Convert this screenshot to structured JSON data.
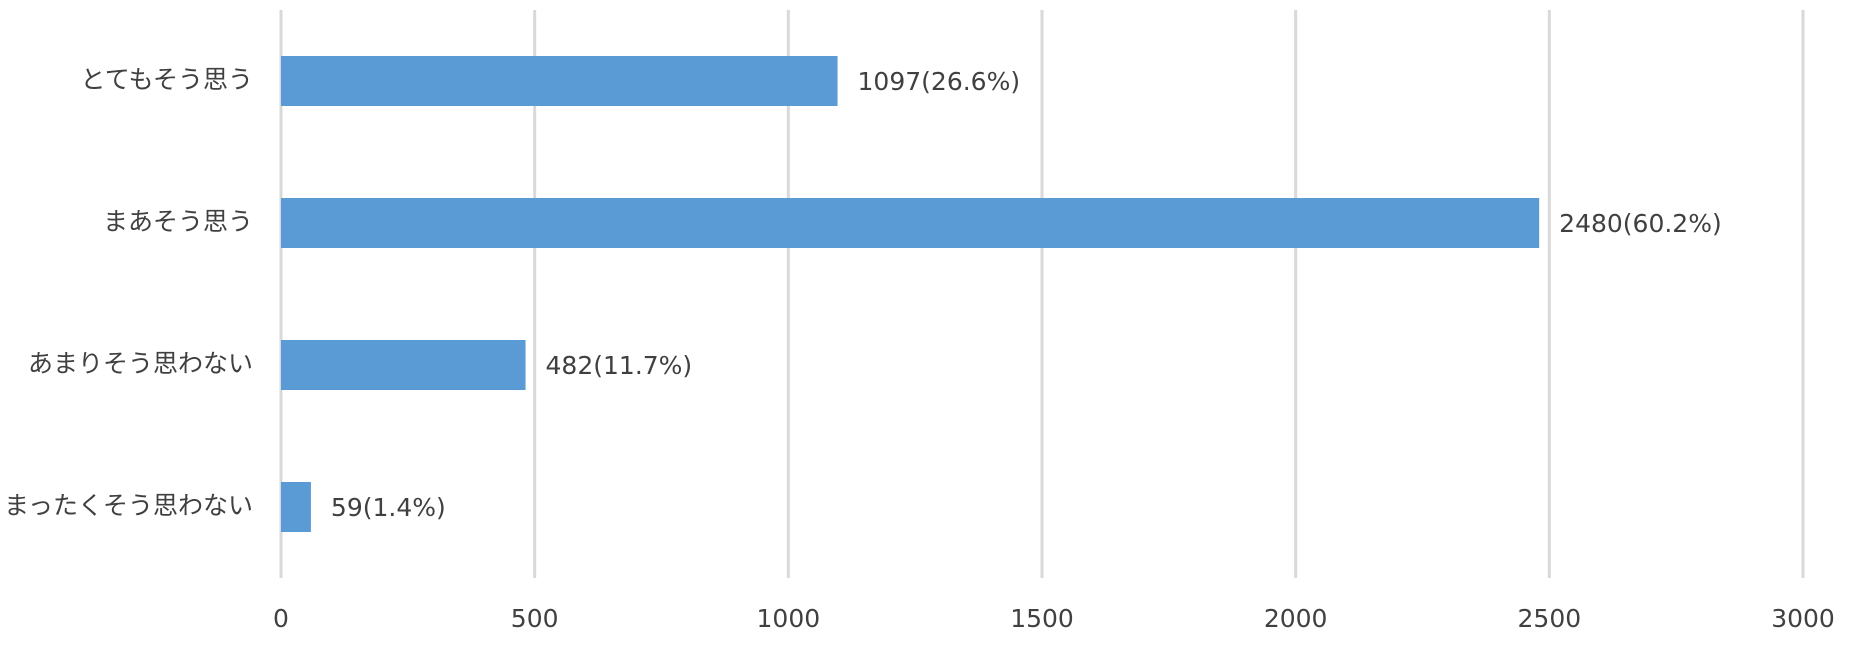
{
  "chart_data": {
    "type": "hbar",
    "categories": [
      "とてもそう思う",
      "まあそう思う",
      "あまりそう思わない",
      "まったくそう思わない"
    ],
    "values": [
      1097,
      2480,
      482,
      59
    ],
    "value_labels": [
      "1097(26.6%)",
      "2480(60.2%)",
      "482(11.7%)",
      "59(1.4%)"
    ],
    "color": "#5b9bd5",
    "xlim": [
      0,
      3000
    ],
    "xticks": [
      0,
      500,
      1000,
      1500,
      2000,
      2500,
      3000
    ],
    "grid": true
  }
}
